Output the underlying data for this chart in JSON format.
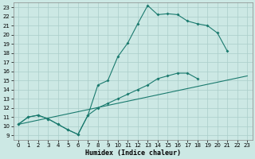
{
  "title": "",
  "xlabel": "Humidex (Indice chaleur)",
  "bg_color": "#cce8e4",
  "grid_color": "#aaceca",
  "line_color": "#1a7a6e",
  "xlim": [
    -0.5,
    23.5
  ],
  "ylim": [
    8.5,
    23.5
  ],
  "xticks": [
    0,
    1,
    2,
    3,
    4,
    5,
    6,
    7,
    8,
    9,
    10,
    11,
    12,
    13,
    14,
    15,
    16,
    17,
    18,
    19,
    20,
    21,
    22,
    23
  ],
  "yticks": [
    9,
    10,
    11,
    12,
    13,
    14,
    15,
    16,
    17,
    18,
    19,
    20,
    21,
    22,
    23
  ],
  "line1_x": [
    0,
    1,
    2,
    3,
    4,
    5,
    6,
    7,
    8,
    9,
    10,
    11,
    12,
    13,
    14,
    15,
    16,
    17,
    18,
    19,
    20,
    21
  ],
  "line1_y": [
    10.2,
    11.0,
    11.2,
    10.8,
    10.2,
    9.6,
    9.1,
    11.2,
    14.5,
    15.0,
    17.6,
    19.1,
    21.2,
    23.2,
    22.2,
    22.3,
    22.2,
    21.5,
    21.2,
    21.0,
    20.2,
    18.2
  ],
  "line2_x": [
    0,
    1,
    2,
    3,
    4,
    5,
    6,
    7,
    8,
    9,
    10,
    11,
    12,
    13,
    14,
    15,
    16,
    17,
    18
  ],
  "line2_y": [
    10.2,
    11.0,
    11.2,
    10.8,
    10.2,
    9.6,
    9.1,
    11.2,
    12.0,
    12.5,
    13.0,
    13.5,
    14.0,
    14.5,
    15.2,
    15.5,
    15.8,
    15.8,
    15.2
  ],
  "line3_x": [
    0,
    23
  ],
  "line3_y": [
    10.2,
    15.5
  ],
  "marker_x": [
    0,
    1,
    2,
    3,
    4,
    5,
    6,
    7,
    8,
    9,
    10,
    11,
    12,
    13,
    14,
    15,
    16,
    17,
    18,
    19,
    20,
    21
  ],
  "marker2_x": [
    0,
    1,
    2,
    3,
    4,
    5,
    6,
    7,
    8,
    9,
    10,
    11,
    12,
    13,
    14,
    15,
    16,
    17,
    18
  ]
}
